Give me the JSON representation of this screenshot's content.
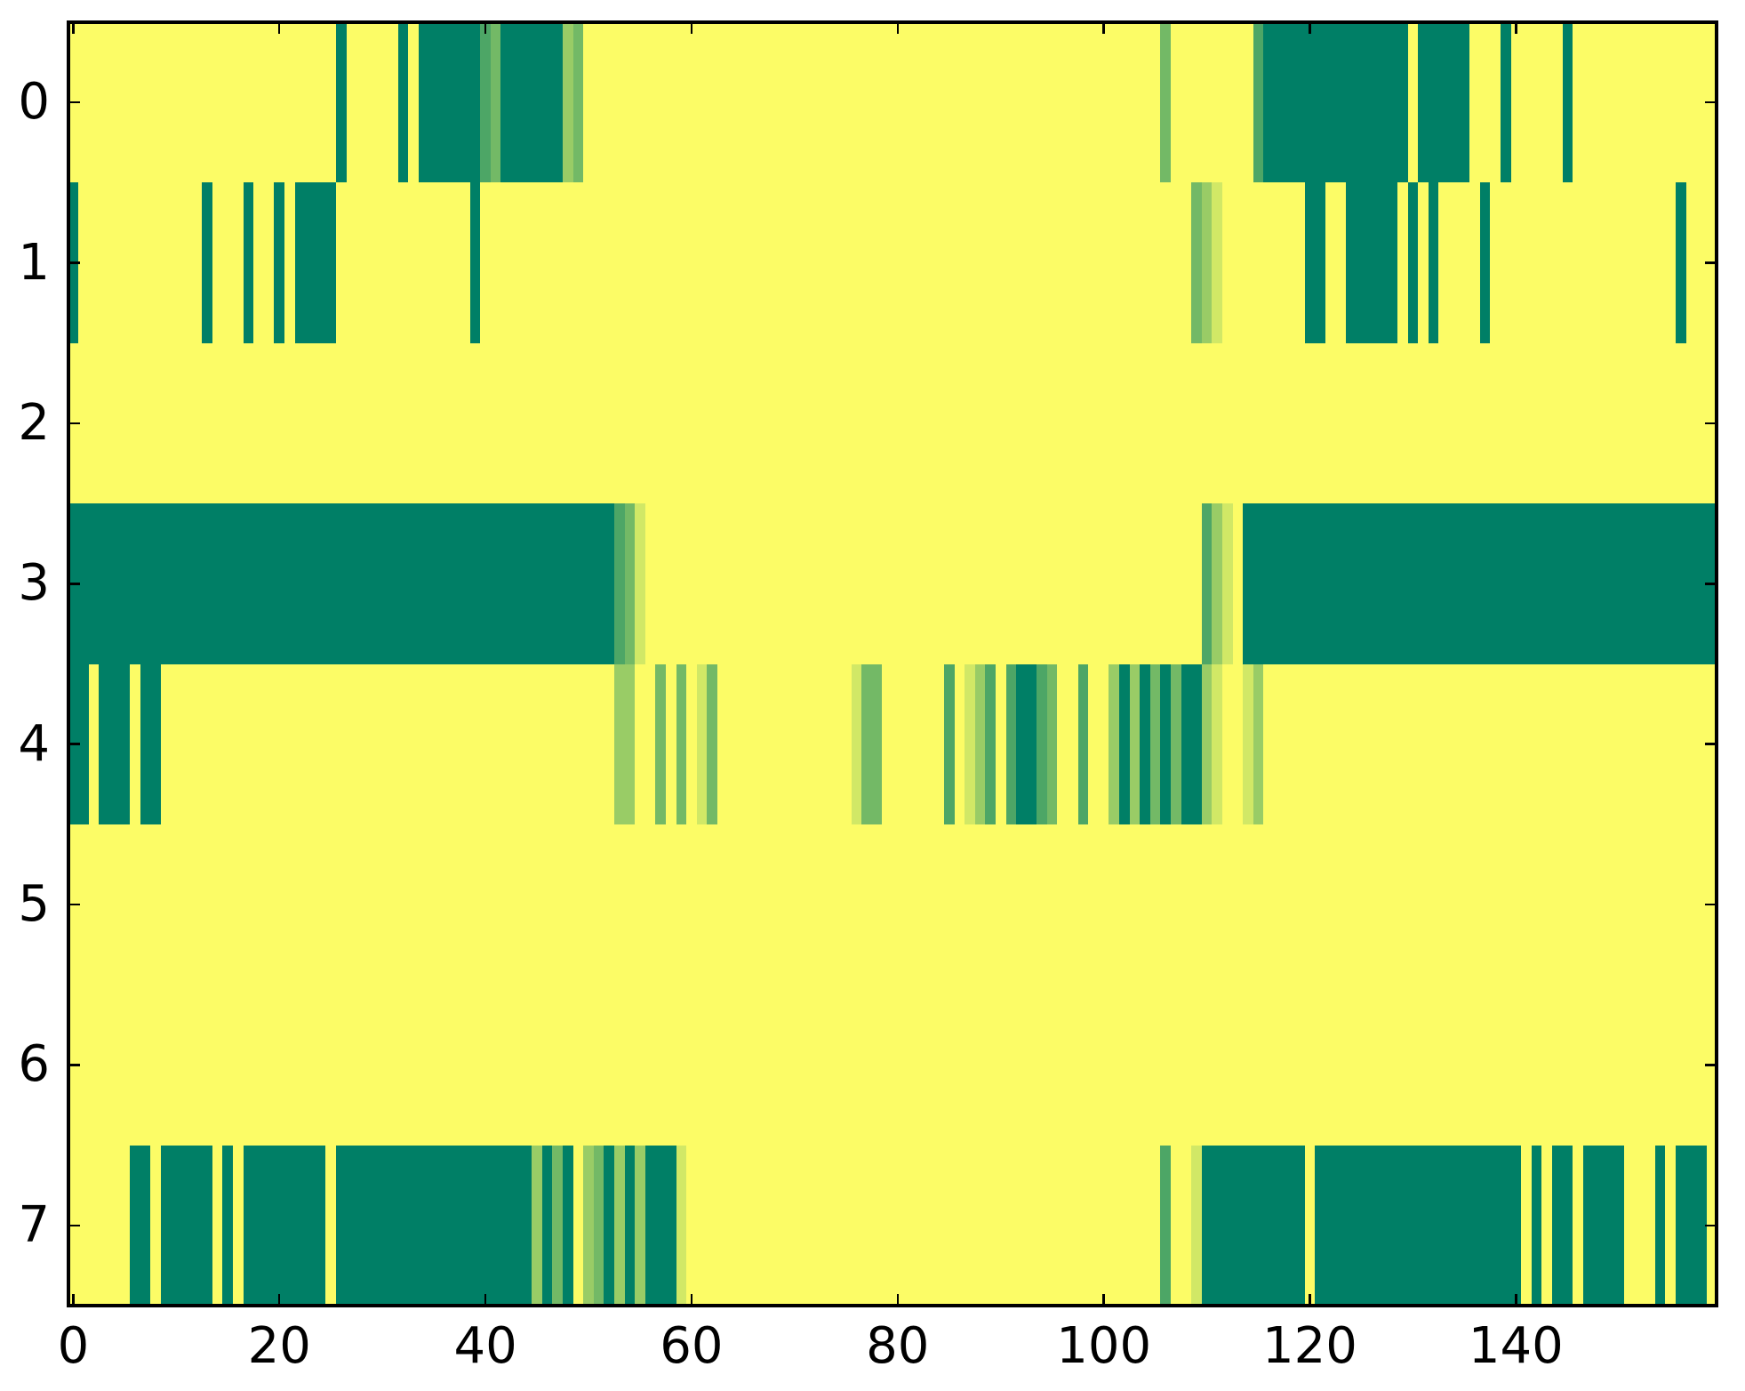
{
  "chart_data": {
    "type": "heatmap",
    "title": "",
    "xlabel": "",
    "ylabel": "",
    "colormap": "summer",
    "n_cols": 160,
    "n_rows": 8,
    "xlim": [
      -0.5,
      159.5
    ],
    "ylim": [
      7.5,
      -0.5
    ],
    "x_ticks": [
      "0",
      "20",
      "40",
      "60",
      "80",
      "100",
      "120",
      "140"
    ],
    "x_tick_values": [
      0,
      20,
      40,
      60,
      80,
      100,
      120,
      140
    ],
    "y_ticks": [
      "0",
      "1",
      "2",
      "3",
      "4",
      "5",
      "6",
      "7"
    ],
    "y_tick_values": [
      0,
      1,
      2,
      3,
      4,
      5,
      6,
      7
    ],
    "grid": false,
    "legend": false,
    "background_color": "#fcfc66",
    "palette": {
      "t": "#007f66",
      "m": "#4da666",
      "m2": "#73b966",
      "l": "#99cc66",
      "p": "#d1e866"
    },
    "palette_values": {
      "t": 0.0,
      "m": 0.3,
      "m2": 0.45,
      "l": 0.6,
      "p": 0.82,
      "background": 1.0
    },
    "rows": [
      {
        "y": 0,
        "runs": [
          [
            26,
            26,
            "t"
          ],
          [
            32,
            32,
            "t"
          ],
          [
            34,
            39,
            "t"
          ],
          [
            40,
            40,
            "m"
          ],
          [
            41,
            41,
            "m2"
          ],
          [
            42,
            47,
            "t"
          ],
          [
            48,
            48,
            "l"
          ],
          [
            49,
            49,
            "m2"
          ],
          [
            106,
            106,
            "m2"
          ],
          [
            115,
            115,
            "m"
          ],
          [
            116,
            129,
            "t"
          ],
          [
            131,
            135,
            "t"
          ],
          [
            139,
            139,
            "t"
          ],
          [
            145,
            145,
            "t"
          ]
        ]
      },
      {
        "y": 1,
        "runs": [
          [
            0,
            0,
            "t"
          ],
          [
            13,
            13,
            "t"
          ],
          [
            17,
            17,
            "t"
          ],
          [
            20,
            20,
            "t"
          ],
          [
            22,
            25,
            "t"
          ],
          [
            39,
            39,
            "t"
          ],
          [
            109,
            109,
            "m2"
          ],
          [
            110,
            110,
            "l"
          ],
          [
            111,
            111,
            "p"
          ],
          [
            120,
            121,
            "t"
          ],
          [
            124,
            128,
            "t"
          ],
          [
            130,
            130,
            "t"
          ],
          [
            132,
            132,
            "t"
          ],
          [
            137,
            137,
            "t"
          ],
          [
            156,
            156,
            "t"
          ]
        ]
      },
      {
        "y": 2,
        "runs": []
      },
      {
        "y": 3,
        "runs": [
          [
            0,
            52,
            "t"
          ],
          [
            53,
            53,
            "m"
          ],
          [
            54,
            54,
            "m2"
          ],
          [
            55,
            55,
            "p"
          ],
          [
            110,
            110,
            "m"
          ],
          [
            111,
            111,
            "l"
          ],
          [
            112,
            112,
            "p"
          ],
          [
            114,
            159,
            "t"
          ]
        ]
      },
      {
        "y": 4,
        "runs": [
          [
            0,
            1,
            "t"
          ],
          [
            3,
            5,
            "t"
          ],
          [
            7,
            8,
            "t"
          ],
          [
            53,
            54,
            "l"
          ],
          [
            57,
            57,
            "m2"
          ],
          [
            59,
            59,
            "m2"
          ],
          [
            61,
            61,
            "p"
          ],
          [
            62,
            62,
            "m2"
          ],
          [
            76,
            76,
            "p"
          ],
          [
            77,
            78,
            "m2"
          ],
          [
            85,
            85,
            "m"
          ],
          [
            87,
            87,
            "p"
          ],
          [
            88,
            88,
            "l"
          ],
          [
            89,
            89,
            "m"
          ],
          [
            91,
            91,
            "m"
          ],
          [
            92,
            93,
            "t"
          ],
          [
            94,
            94,
            "m"
          ],
          [
            95,
            95,
            "m2"
          ],
          [
            98,
            98,
            "m"
          ],
          [
            101,
            101,
            "l"
          ],
          [
            102,
            102,
            "t"
          ],
          [
            103,
            103,
            "l"
          ],
          [
            104,
            104,
            "t"
          ],
          [
            105,
            105,
            "m2"
          ],
          [
            106,
            106,
            "t"
          ],
          [
            107,
            107,
            "m2"
          ],
          [
            108,
            109,
            "t"
          ],
          [
            110,
            110,
            "l"
          ],
          [
            111,
            111,
            "p"
          ],
          [
            114,
            114,
            "p"
          ],
          [
            115,
            115,
            "l"
          ]
        ]
      },
      {
        "y": 5,
        "runs": []
      },
      {
        "y": 6,
        "runs": []
      },
      {
        "y": 7,
        "runs": [
          [
            6,
            7,
            "t"
          ],
          [
            9,
            13,
            "t"
          ],
          [
            15,
            15,
            "t"
          ],
          [
            17,
            24,
            "t"
          ],
          [
            26,
            44,
            "t"
          ],
          [
            45,
            45,
            "l"
          ],
          [
            46,
            46,
            "t"
          ],
          [
            47,
            47,
            "m2"
          ],
          [
            48,
            48,
            "t"
          ],
          [
            50,
            50,
            "l"
          ],
          [
            51,
            51,
            "m2"
          ],
          [
            52,
            52,
            "t"
          ],
          [
            53,
            53,
            "l"
          ],
          [
            54,
            54,
            "t"
          ],
          [
            55,
            55,
            "l"
          ],
          [
            56,
            58,
            "t"
          ],
          [
            59,
            59,
            "p"
          ],
          [
            106,
            106,
            "m"
          ],
          [
            109,
            109,
            "p"
          ],
          [
            110,
            119,
            "t"
          ],
          [
            121,
            140,
            "t"
          ],
          [
            142,
            142,
            "t"
          ],
          [
            144,
            145,
            "t"
          ],
          [
            147,
            150,
            "t"
          ],
          [
            154,
            154,
            "t"
          ],
          [
            156,
            158,
            "t"
          ]
        ]
      }
    ]
  }
}
